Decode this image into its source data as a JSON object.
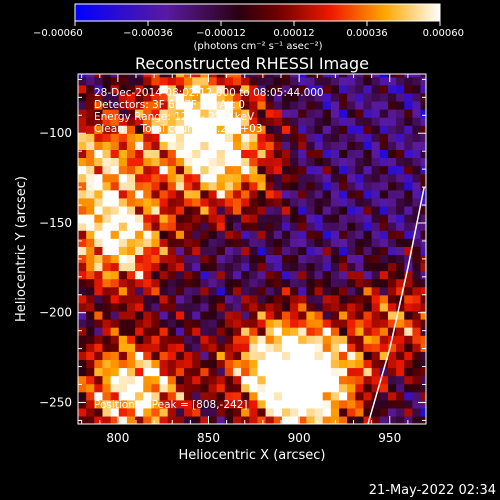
{
  "chart_data": {
    "type": "heatmap",
    "title": "Reconstructed RHESSI Image",
    "xlabel": "Heliocentric X (arcsec)",
    "ylabel": "Heliocentric Y (arcsec)",
    "xlim": [
      778,
      970
    ],
    "ylim": [
      -262,
      -67
    ],
    "x_ticks": [
      {
        "value": 800,
        "label": "800"
      },
      {
        "value": 850,
        "label": "850"
      },
      {
        "value": 900,
        "label": "900"
      },
      {
        "value": 950,
        "label": "950"
      }
    ],
    "y_ticks": [
      {
        "value": -100,
        "label": "−100"
      },
      {
        "value": -150,
        "label": "−150"
      },
      {
        "value": -200,
        "label": "−200"
      },
      {
        "value": -250,
        "label": "−250"
      }
    ],
    "colorbar": {
      "colormap": "blue-purple-red-yellow-white",
      "range": [
        -0.0006,
        0.0006
      ],
      "ticks": [
        {
          "value": -0.0006,
          "label": "−0.00060"
        },
        {
          "value": -0.00036,
          "label": "−0.00036"
        },
        {
          "value": -0.00012,
          "label": "−0.00012"
        },
        {
          "value": 0.00012,
          "label": "0.00012"
        },
        {
          "value": 0.00036,
          "label": "0.00036"
        },
        {
          "value": 0.0006,
          "label": "0.00060"
        }
      ],
      "unit_label": "(photons cm⁻² s⁻¹ asec⁻²)"
    },
    "annotations": [
      "28-Dec-2014 08:02:12.000 to 08:05:44.000",
      "Detectors: 3F 6F 7F 9F, Att 0",
      "Energy Range: 12.0 - 25.0 keV",
      "Clean     Total counts: 2.24E+03"
    ],
    "peak_label": "Position of Peak = [808,-242]",
    "peak": [
      808,
      -242
    ],
    "sources": [
      {
        "x": 800,
        "y": -160,
        "intensity": 0.00055
      },
      {
        "x": 808,
        "y": -242,
        "intensity": 0.0006
      },
      {
        "x": 905,
        "y": -243,
        "intensity": 0.00058
      },
      {
        "x": 843,
        "y": -87,
        "intensity": 0.00052
      },
      {
        "x": 860,
        "y": -118,
        "intensity": 0.0004
      },
      {
        "x": 888,
        "y": -225,
        "intensity": 0.0004
      },
      {
        "x": 785,
        "y": -115,
        "intensity": 0.0004
      },
      {
        "x": 955,
        "y": -205,
        "intensity": 0.00025
      }
    ],
    "background_level": -0.00022,
    "limb": [
      [
        969,
        -130
      ],
      [
        960,
        -175
      ],
      [
        950,
        -220
      ],
      [
        938,
        -262
      ]
    ],
    "footer": "21-May-2022 02:34"
  }
}
